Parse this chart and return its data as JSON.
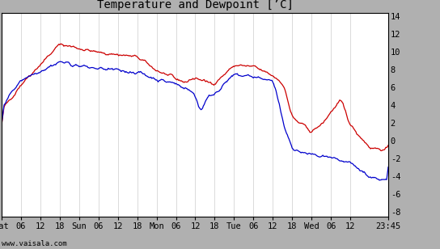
{
  "title": "Temperature and Dewpoint [’C]",
  "ylabel_right_ticks": [
    -8,
    -6,
    -4,
    -2,
    0,
    2,
    4,
    6,
    8,
    10,
    12,
    14
  ],
  "ylim": [
    -8.5,
    14.5
  ],
  "x_tick_labels": [
    "Sat",
    "06",
    "12",
    "18",
    "Sun",
    "06",
    "12",
    "18",
    "Mon",
    "06",
    "12",
    "18",
    "Tue",
    "06",
    "12",
    "18",
    "Wed",
    "06",
    "12",
    "23:45"
  ],
  "x_tick_positions": [
    0,
    6,
    12,
    18,
    24,
    30,
    36,
    42,
    48,
    54,
    60,
    66,
    72,
    78,
    84,
    90,
    96,
    102,
    108,
    119.75
  ],
  "total_hours": 119.75,
  "background_color": "#ffffff",
  "fig_bg_color": "#b0b0b0",
  "grid_color": "#cccccc",
  "temp_color": "#cc0000",
  "dewpoint_color": "#0000cc",
  "title_fontsize": 10,
  "tick_fontsize": 7.5,
  "watermark": "www.vaisala.com",
  "line_width": 0.9
}
